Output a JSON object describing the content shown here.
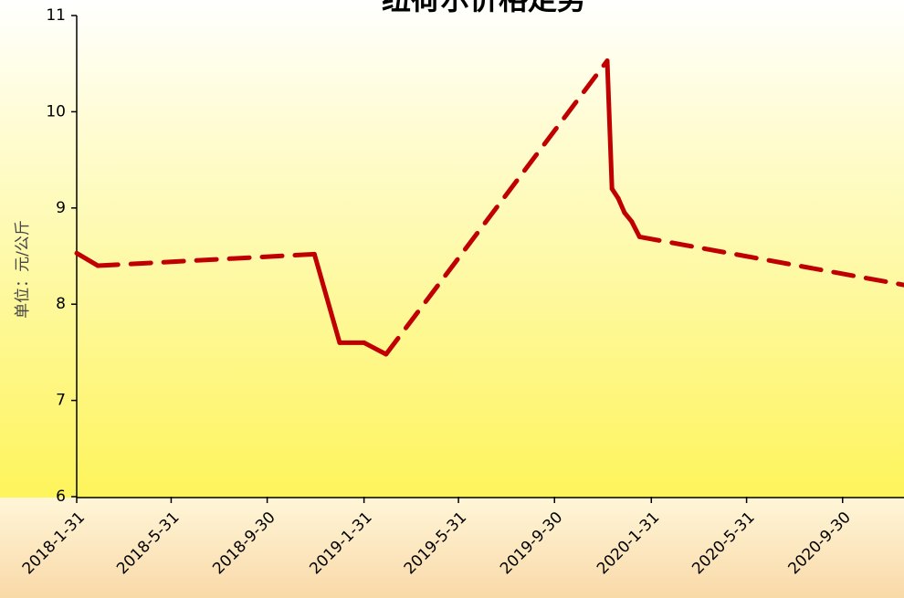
{
  "chart_data": {
    "type": "line",
    "title": "纽荷尔价格走势",
    "y_label": "单位：元/公斤",
    "x": [
      "2018-1-31",
      "2018-2-27",
      "2018-11-29",
      "2018-12-31",
      "2019-1-31",
      "2019-2-28",
      "2019-12-6",
      "2019-12-12",
      "2019-12-20",
      "2019-12-28",
      "2020-1-6",
      "2020-1-16",
      "2020-12-17"
    ],
    "series": [
      {
        "name": "纽荷尔",
        "color": "#c00000",
        "values": [
          8.53,
          8.4,
          8.52,
          7.6,
          7.6,
          7.48,
          10.53,
          9.2,
          9.1,
          8.95,
          8.86,
          8.7,
          8.2
        ]
      }
    ],
    "xlim": [
      "2018-1-31",
      "2020-12-17"
    ],
    "xticks": [
      "2018-1-31",
      "2018-5-31",
      "2018-9-30",
      "2019-1-31",
      "2019-5-31",
      "2019-9-30",
      "2020-1-31",
      "2020-5-31",
      "2020-9-30"
    ],
    "ylim": [
      6,
      11
    ],
    "yticks": [
      6,
      7,
      8,
      9,
      10,
      11
    ]
  }
}
